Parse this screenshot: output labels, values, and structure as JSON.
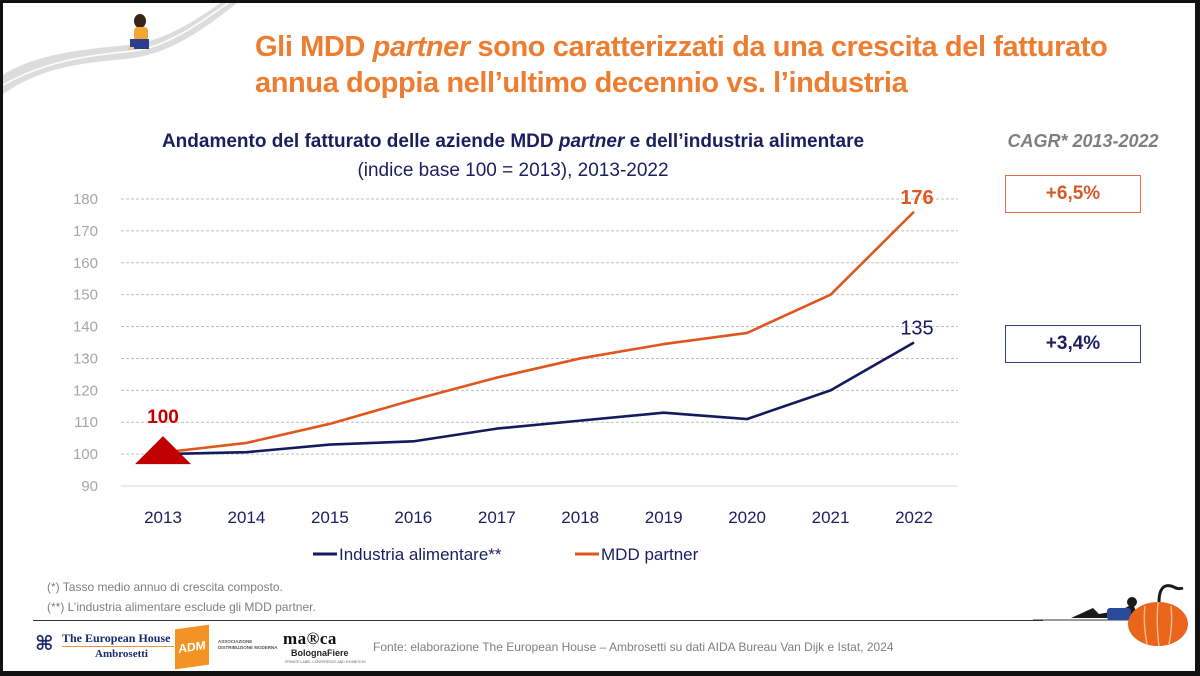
{
  "slide": {
    "title_part1": "Gli MDD ",
    "title_italic": "partner",
    "title_part2": " sono caratterizzati da una crescita del fatturato annua doppia nell’ultimo decennio vs. l’industria",
    "chart_title_part1": "Andamento del fatturato delle aziende MDD ",
    "chart_title_italic": "partner",
    "chart_title_part2": " e dell’industria alimentare",
    "chart_subtitle": "(indice base 100 = 2013), 2013-2022",
    "cagr": {
      "title": "CAGR* 2013-2022",
      "mdd_value": "+6,5%",
      "industria_value": "+3,4%"
    },
    "footnotes": [
      "(*) Tasso medio annuo di crescita composto.",
      "(**) L’industria alimentare esclude gli MDD partner."
    ],
    "source": "Fonte: elaborazione The European House – Ambrosetti su dati AIDA Bureau Van Dijk e Istat, 2024",
    "logos": {
      "teha_line1": "The European House",
      "teha_line2": "Ambrosetti",
      "adm": "ADM",
      "adm_text": "ASSOCIAZIONE DISTRIBUZIONE MODERNA",
      "marca": "ma®ca",
      "marca_sub": "BolognaFiere",
      "marca_sub2": "PRIVATE LABEL CONFERENCE AND EXHIBITION"
    },
    "icons": {
      "teha_logo": "teha-logo-icon",
      "illustration_top": "woman-on-road-illustration",
      "illustration_bottom": "man-with-pumpkin-illustration"
    },
    "colors": {
      "accent_orange": "#ed7d31",
      "mdd_line": "#e0561f",
      "industria_line": "#141a5c",
      "marker_red": "#c00000",
      "navy_text": "#1a1f5e"
    }
  },
  "chart_data": {
    "type": "line",
    "title": "Andamento del fatturato delle aziende MDD partner e dell’industria alimentare",
    "subtitle": "(indice base 100 = 2013), 2013-2022",
    "xlabel": "",
    "ylabel": "",
    "categories": [
      "2013",
      "2014",
      "2015",
      "2016",
      "2017",
      "2018",
      "2019",
      "2020",
      "2021",
      "2022"
    ],
    "ylim": [
      90,
      180
    ],
    "yticks": [
      90,
      100,
      110,
      120,
      130,
      140,
      150,
      160,
      170,
      180
    ],
    "grid": "horizontal-dashed",
    "legend_position": "bottom",
    "series": [
      {
        "name": "Industria alimentare**",
        "color": "#141a5c",
        "values": [
          100,
          100.6,
          103,
          104,
          108,
          110.5,
          113,
          111,
          120,
          135
        ]
      },
      {
        "name": "MDD partner",
        "color": "#e0561f",
        "values": [
          100.5,
          103.5,
          109.5,
          117,
          124,
          130,
          134.5,
          138,
          150,
          176
        ]
      }
    ],
    "annotations": [
      {
        "text": "100",
        "x": "2013",
        "y": 100,
        "color": "#c00000",
        "marker": "triangle"
      },
      {
        "text": "176",
        "x": "2022",
        "y": 176,
        "color": "#e0561f",
        "series": "MDD partner"
      },
      {
        "text": "135",
        "x": "2022",
        "y": 135,
        "color": "#141a5c",
        "series": "Industria alimentare**"
      }
    ]
  }
}
